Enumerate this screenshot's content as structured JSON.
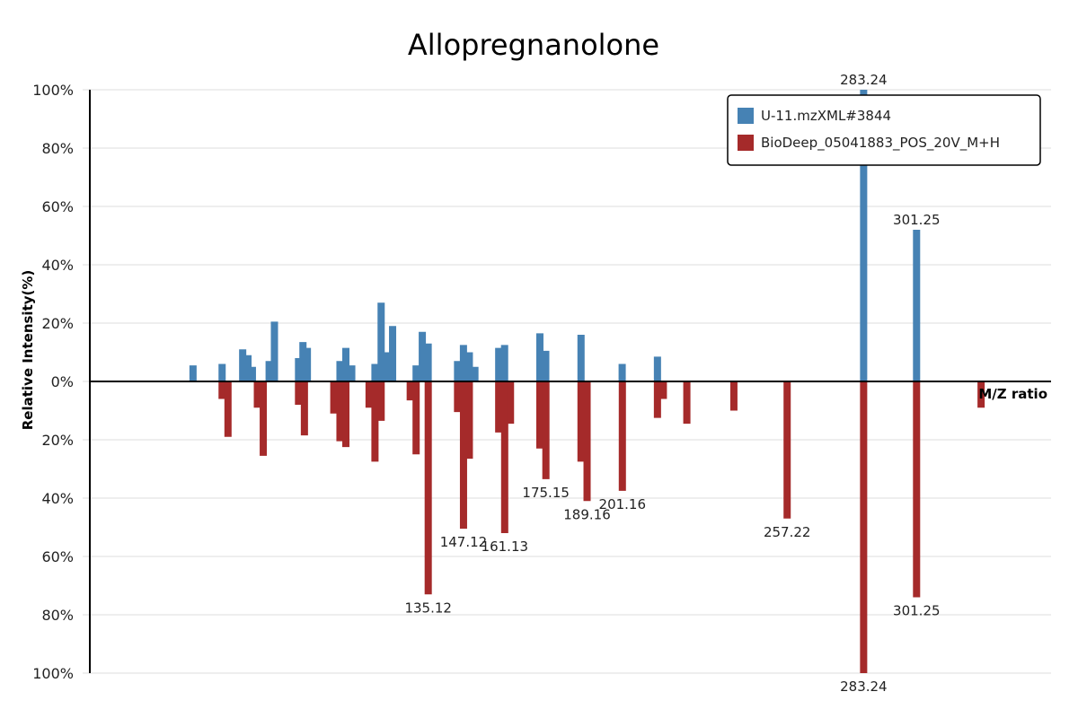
{
  "chart_data": {
    "type": "bar",
    "title": "Allopregnanolone",
    "xlabel": "M/Z ratio",
    "ylabel": "Relative Intensity(%)",
    "ylim": [
      -100,
      100
    ],
    "y_tick_labels": [
      "100%",
      "80%",
      "60%",
      "40%",
      "20%",
      "0%",
      "20%",
      "40%",
      "60%",
      "80%",
      "100%"
    ],
    "grid": true,
    "legend_position": "top-right",
    "series": [
      {
        "name": "U-11.mzXML#3844",
        "color": "#4682b4",
        "direction": "up",
        "points": [
          {
            "mz": 55.1,
            "value": 5.5
          },
          {
            "mz": 65.0,
            "value": 6.0
          },
          {
            "mz": 72.0,
            "value": 11.0
          },
          {
            "mz": 73.8,
            "value": 9.0
          },
          {
            "mz": 75.3,
            "value": 5.0
          },
          {
            "mz": 81.0,
            "value": 7.0
          },
          {
            "mz": 82.8,
            "value": 20.5
          },
          {
            "mz": 91.0,
            "value": 8.0
          },
          {
            "mz": 92.5,
            "value": 13.5
          },
          {
            "mz": 94.0,
            "value": 11.5
          },
          {
            "mz": 105.1,
            "value": 7.0
          },
          {
            "mz": 107.1,
            "value": 11.5
          },
          {
            "mz": 109.1,
            "value": 5.5
          },
          {
            "mz": 117.0,
            "value": 6.0
          },
          {
            "mz": 119.1,
            "value": 27.0
          },
          {
            "mz": 121.0,
            "value": 10.0
          },
          {
            "mz": 123.0,
            "value": 19.0
          },
          {
            "mz": 131.0,
            "value": 5.5
          },
          {
            "mz": 133.1,
            "value": 17.0
          },
          {
            "mz": 135.1,
            "value": 13.0
          },
          {
            "mz": 145.1,
            "value": 7.0
          },
          {
            "mz": 147.1,
            "value": 12.5
          },
          {
            "mz": 149.1,
            "value": 10.0
          },
          {
            "mz": 151.0,
            "value": 5.0
          },
          {
            "mz": 159.1,
            "value": 11.5
          },
          {
            "mz": 161.1,
            "value": 12.5
          },
          {
            "mz": 173.1,
            "value": 16.5
          },
          {
            "mz": 175.1,
            "value": 10.5
          },
          {
            "mz": 187.1,
            "value": 16.0
          },
          {
            "mz": 201.1,
            "value": 6.0
          },
          {
            "mz": 213.1,
            "value": 8.5
          },
          {
            "mz": 283.24,
            "value": 100.0,
            "label": "283.24"
          },
          {
            "mz": 301.25,
            "value": 52.0,
            "label": "301.25"
          }
        ]
      },
      {
        "name": "BioDeep_05041883_POS_20V_M+H",
        "color": "#a52a2a",
        "direction": "down",
        "points": [
          {
            "mz": 65.0,
            "value": 6.0
          },
          {
            "mz": 67.0,
            "value": 19.0
          },
          {
            "mz": 77.0,
            "value": 9.0
          },
          {
            "mz": 79.0,
            "value": 25.5
          },
          {
            "mz": 91.0,
            "value": 8.0
          },
          {
            "mz": 93.0,
            "value": 18.5
          },
          {
            "mz": 103.0,
            "value": 11.0
          },
          {
            "mz": 105.1,
            "value": 20.5
          },
          {
            "mz": 107.1,
            "value": 22.5
          },
          {
            "mz": 115.0,
            "value": 9.0
          },
          {
            "mz": 117.0,
            "value": 27.5
          },
          {
            "mz": 119.1,
            "value": 13.5
          },
          {
            "mz": 129.0,
            "value": 6.5
          },
          {
            "mz": 131.0,
            "value": 25.0
          },
          {
            "mz": 135.12,
            "value": 73.0,
            "label": "135.12"
          },
          {
            "mz": 145.1,
            "value": 10.5
          },
          {
            "mz": 147.12,
            "value": 50.5,
            "label": "147.12"
          },
          {
            "mz": 149.1,
            "value": 26.5
          },
          {
            "mz": 159.1,
            "value": 17.5
          },
          {
            "mz": 161.13,
            "value": 52.0,
            "label": "161.13"
          },
          {
            "mz": 163.1,
            "value": 14.5
          },
          {
            "mz": 173.1,
            "value": 23.0
          },
          {
            "mz": 175.15,
            "value": 33.5,
            "label": "175.15"
          },
          {
            "mz": 187.1,
            "value": 27.5
          },
          {
            "mz": 189.16,
            "value": 41.0,
            "label": "189.16"
          },
          {
            "mz": 201.16,
            "value": 37.5,
            "label": "201.16"
          },
          {
            "mz": 213.1,
            "value": 12.5
          },
          {
            "mz": 215.1,
            "value": 6.0
          },
          {
            "mz": 223.1,
            "value": 14.5
          },
          {
            "mz": 239.1,
            "value": 10.0
          },
          {
            "mz": 257.22,
            "value": 47.0,
            "label": "257.22"
          },
          {
            "mz": 283.24,
            "value": 100.0,
            "label": "283.24"
          },
          {
            "mz": 301.25,
            "value": 74.0,
            "label": "301.25"
          },
          {
            "mz": 323.2,
            "value": 9.0
          }
        ]
      }
    ]
  }
}
